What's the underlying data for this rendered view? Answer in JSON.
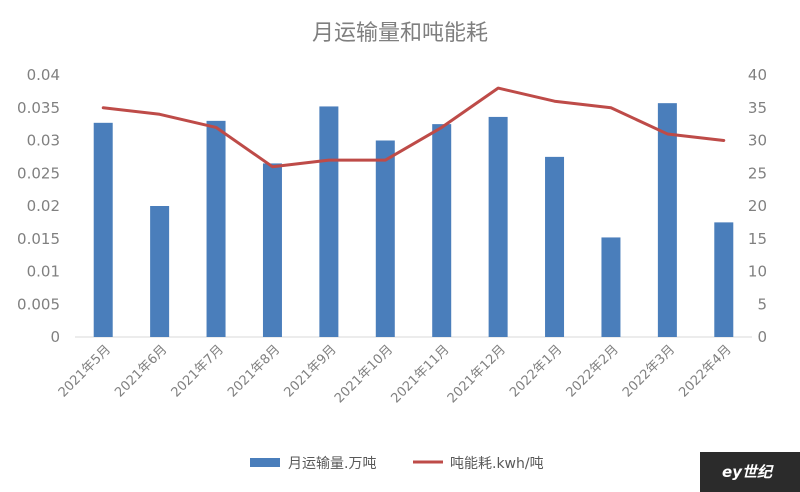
{
  "chart_data": {
    "type": "bar+line",
    "title": "月运输量和吨能耗",
    "categories": [
      "2021年5月",
      "2021年6月",
      "2021年7月",
      "2021年8月",
      "2021年9月",
      "2021年10月",
      "2021年11月",
      "2021年12月",
      "2022年1月",
      "2022年2月",
      "2022年3月",
      "2022年4月"
    ],
    "series": [
      {
        "name": "月运输量.万吨",
        "type": "bar",
        "axis": "left",
        "color": "#4a7ebb",
        "values": [
          0.0327,
          0.02,
          0.033,
          0.0265,
          0.0352,
          0.03,
          0.0325,
          0.0336,
          0.0275,
          0.0152,
          0.0357,
          0.0175
        ]
      },
      {
        "name": "吨能耗.kwh/吨",
        "type": "line",
        "axis": "right",
        "color": "#be4b48",
        "values": [
          35,
          34,
          32,
          26,
          27,
          27,
          32,
          38,
          36,
          35,
          31,
          30
        ]
      }
    ],
    "y_left": {
      "min": 0,
      "max": 0.04,
      "ticks": [
        0,
        0.005,
        0.01,
        0.015,
        0.02,
        0.025,
        0.03,
        0.035,
        0.04
      ],
      "tick_labels": [
        "0",
        "0.005",
        "0.01",
        "0.015",
        "0.02",
        "0.025",
        "0.03",
        "0.035",
        "0.04"
      ]
    },
    "y_right": {
      "min": 0,
      "max": 40,
      "ticks": [
        0,
        5,
        10,
        15,
        20,
        25,
        30,
        35,
        40
      ],
      "tick_labels": [
        "0",
        "5",
        "10",
        "15",
        "20",
        "25",
        "30",
        "35",
        "40"
      ]
    },
    "grid": false,
    "legend_position": "bottom"
  },
  "watermark": "ey世纪"
}
